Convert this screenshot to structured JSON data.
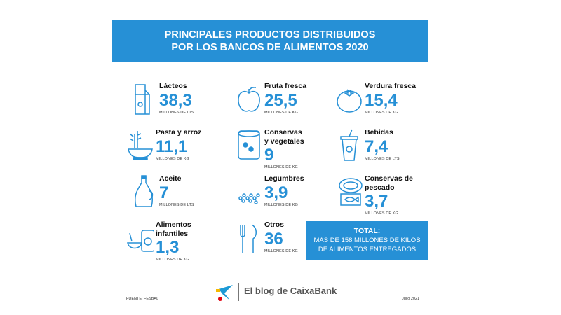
{
  "header": {
    "line1": "PRINCIPALES PRODUCTOS DISTRIBUIDOS",
    "line2": "POR LOS BANCOS DE ALIMENTOS 2020"
  },
  "items": [
    {
      "label": "Lácteos",
      "value": "38,3",
      "unit": "MILLONES DE LTS",
      "icon": "milk-carton-icon"
    },
    {
      "label": "Fruta fresca",
      "value": "25,5",
      "unit": "MILLONES DE KG",
      "icon": "apple-icon"
    },
    {
      "label": "Verdura fresca",
      "value": "15,4",
      "unit": "MILLONES DE KG",
      "icon": "tomato-icon"
    },
    {
      "label": "Pasta y arroz",
      "value": "11,1",
      "unit": "MILLONES DE KG",
      "icon": "bowl-icon"
    },
    {
      "label": "Conservas\ny vegetales",
      "value": "9",
      "unit": "MILLONES DE KG",
      "icon": "can-icon"
    },
    {
      "label": "Bebidas",
      "value": "7,4",
      "unit": "MILLONES DE LTS",
      "icon": "cup-icon"
    },
    {
      "label": "Aceite",
      "value": "7",
      "unit": "MILLONES DE LTS",
      "icon": "oil-bottle-icon"
    },
    {
      "label": "Legumbres",
      "value": "3,9",
      "unit": "MILLONES DE KG",
      "icon": "legumes-icon"
    },
    {
      "label": "Conservas de\npescado",
      "value": "3,7",
      "unit": "MILLONES DE KG",
      "icon": "fish-can-icon"
    },
    {
      "label": "Alimentos\ninfantiles",
      "value": "1,3",
      "unit": "MILLONES DE KG",
      "icon": "baby-food-icon"
    },
    {
      "label": "Otros",
      "value": "36",
      "unit": "MILLONES DE KG",
      "icon": "cutlery-icon"
    }
  ],
  "total": {
    "title": "TOTAL:",
    "line1": "MÁS DE 158 MILLONES DE KILOS",
    "line2": "DE ALIMENTOS ENTREGADOS"
  },
  "footer": {
    "source": "FUENTE: FESBAL",
    "brand": "El blog de CaixaBank",
    "date": "Julio 2021"
  },
  "colors": {
    "accent": "#2690d6"
  }
}
